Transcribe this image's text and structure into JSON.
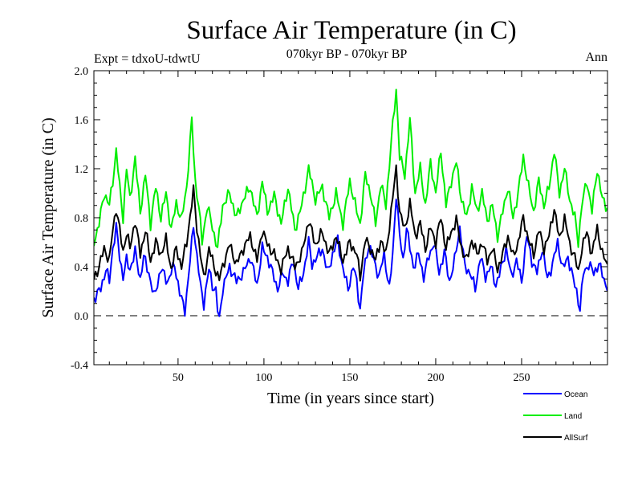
{
  "chart_data": {
    "type": "line",
    "title": "Surface Air Temperature (in C)",
    "subtitle": "070kyr BP - 070kyr BP",
    "expt_label": "Expt = tdxoU-tdwtU",
    "season_label": "Ann",
    "xlabel": "Time (in years since start)",
    "ylabel": "Surface Air Temperature (in C)",
    "xlim": [
      1,
      300
    ],
    "ylim": [
      -0.4,
      2.0
    ],
    "x_ticks": [
      50,
      100,
      150,
      200,
      250
    ],
    "y_ticks": [
      "-0.4",
      "0.0",
      "0.4",
      "0.8",
      "1.2",
      "1.6",
      "2.0"
    ],
    "zero_line": true,
    "legend_position": "bottom-right",
    "series": [
      {
        "name": "Ocean",
        "color": "#0000ff",
        "anchors": [
          [
            1,
            0.14
          ],
          [
            5,
            0.22
          ],
          [
            8,
            0.38
          ],
          [
            10,
            0.28
          ],
          [
            12,
            0.55
          ],
          [
            14,
            0.72
          ],
          [
            16,
            0.48
          ],
          [
            18,
            0.32
          ],
          [
            20,
            0.45
          ],
          [
            22,
            0.38
          ],
          [
            25,
            0.52
          ],
          [
            28,
            0.3
          ],
          [
            30,
            0.48
          ],
          [
            33,
            0.35
          ],
          [
            36,
            0.15
          ],
          [
            40,
            0.38
          ],
          [
            44,
            0.28
          ],
          [
            48,
            0.42
          ],
          [
            51,
            0.18
          ],
          [
            54,
            0.05
          ],
          [
            56,
            0.3
          ],
          [
            59,
            0.75
          ],
          [
            61,
            0.48
          ],
          [
            63,
            0.25
          ],
          [
            65,
            0.1
          ],
          [
            68,
            0.38
          ],
          [
            70,
            0.25
          ],
          [
            72,
            0.2
          ],
          [
            73,
            0.05
          ],
          [
            74,
            -0.03
          ],
          [
            76,
            0.22
          ],
          [
            80,
            0.4
          ],
          [
            84,
            0.28
          ],
          [
            88,
            0.35
          ],
          [
            92,
            0.48
          ],
          [
            96,
            0.25
          ],
          [
            99,
            0.55
          ],
          [
            102,
            0.48
          ],
          [
            105,
            0.35
          ],
          [
            108,
            0.22
          ],
          [
            111,
            0.35
          ],
          [
            114,
            0.28
          ],
          [
            117,
            0.45
          ],
          [
            120,
            0.22
          ],
          [
            123,
            0.35
          ],
          [
            126,
            0.6
          ],
          [
            128,
            0.42
          ],
          [
            131,
            0.48
          ],
          [
            134,
            0.55
          ],
          [
            137,
            0.35
          ],
          [
            140,
            0.5
          ],
          [
            143,
            0.62
          ],
          [
            146,
            0.38
          ],
          [
            149,
            0.22
          ],
          [
            152,
            0.4
          ],
          [
            154,
            0.28
          ],
          [
            156,
            0.05
          ],
          [
            158,
            0.35
          ],
          [
            161,
            0.58
          ],
          [
            164,
            0.45
          ],
          [
            167,
            0.32
          ],
          [
            170,
            0.5
          ],
          [
            173,
            0.22
          ],
          [
            175,
            0.5
          ],
          [
            177,
            1.0
          ],
          [
            179,
            0.65
          ],
          [
            181,
            0.45
          ],
          [
            183,
            0.72
          ],
          [
            185,
            0.55
          ],
          [
            187,
            0.4
          ],
          [
            190,
            0.5
          ],
          [
            193,
            0.32
          ],
          [
            196,
            0.48
          ],
          [
            199,
            0.6
          ],
          [
            202,
            0.35
          ],
          [
            205,
            0.52
          ],
          [
            208,
            0.28
          ],
          [
            211,
            0.45
          ],
          [
            214,
            0.72
          ],
          [
            217,
            0.4
          ],
          [
            220,
            0.35
          ],
          [
            223,
            0.22
          ],
          [
            226,
            0.48
          ],
          [
            229,
            0.32
          ],
          [
            232,
            0.4
          ],
          [
            235,
            0.25
          ],
          [
            238,
            0.38
          ],
          [
            241,
            0.55
          ],
          [
            244,
            0.32
          ],
          [
            247,
            0.45
          ],
          [
            250,
            0.28
          ],
          [
            253,
            0.65
          ],
          [
            256,
            0.45
          ],
          [
            259,
            0.35
          ],
          [
            262,
            0.55
          ],
          [
            265,
            0.3
          ],
          [
            268,
            0.42
          ],
          [
            271,
            0.6
          ],
          [
            274,
            0.38
          ],
          [
            277,
            0.48
          ],
          [
            280,
            0.3
          ],
          [
            282,
            0.2
          ],
          [
            284,
            0.05
          ],
          [
            286,
            0.35
          ],
          [
            289,
            0.42
          ],
          [
            292,
            0.35
          ],
          [
            295,
            0.42
          ],
          [
            298,
            0.3
          ],
          [
            300,
            0.2
          ]
        ]
      },
      {
        "name": "Land",
        "color": "#00ee00",
        "anchors": [
          [
            1,
            0.6
          ],
          [
            4,
            0.75
          ],
          [
            7,
            1.0
          ],
          [
            10,
            0.9
          ],
          [
            12,
            1.1
          ],
          [
            14,
            1.35
          ],
          [
            16,
            1.05
          ],
          [
            18,
            0.8
          ],
          [
            20,
            1.2
          ],
          [
            22,
            0.95
          ],
          [
            25,
            1.28
          ],
          [
            28,
            0.85
          ],
          [
            31,
            1.15
          ],
          [
            34,
            0.75
          ],
          [
            37,
            1.05
          ],
          [
            40,
            0.8
          ],
          [
            43,
            1.0
          ],
          [
            46,
            0.7
          ],
          [
            49,
            0.92
          ],
          [
            52,
            0.78
          ],
          [
            55,
            1.05
          ],
          [
            58,
            1.6
          ],
          [
            60,
            1.1
          ],
          [
            62,
            0.9
          ],
          [
            64,
            0.6
          ],
          [
            67,
            0.9
          ],
          [
            70,
            0.72
          ],
          [
            73,
            0.55
          ],
          [
            76,
            0.9
          ],
          [
            80,
            1.0
          ],
          [
            84,
            0.8
          ],
          [
            88,
            0.95
          ],
          [
            92,
            1.05
          ],
          [
            96,
            0.8
          ],
          [
            99,
            1.1
          ],
          [
            102,
            0.85
          ],
          [
            106,
            0.98
          ],
          [
            110,
            0.75
          ],
          [
            114,
            1.05
          ],
          [
            118,
            0.7
          ],
          [
            122,
            0.9
          ],
          [
            126,
            1.2
          ],
          [
            130,
            0.95
          ],
          [
            134,
            1.05
          ],
          [
            138,
            0.8
          ],
          [
            142,
            1.0
          ],
          [
            146,
            0.75
          ],
          [
            150,
            1.1
          ],
          [
            154,
            0.85
          ],
          [
            156,
            0.75
          ],
          [
            159,
            1.15
          ],
          [
            162,
            1.0
          ],
          [
            165,
            0.75
          ],
          [
            168,
            1.08
          ],
          [
            171,
            0.9
          ],
          [
            174,
            1.4
          ],
          [
            177,
            1.85
          ],
          [
            179,
            1.3
          ],
          [
            182,
            1.15
          ],
          [
            185,
            1.6
          ],
          [
            188,
            1.0
          ],
          [
            191,
            1.2
          ],
          [
            194,
            0.9
          ],
          [
            197,
            1.25
          ],
          [
            200,
            1.0
          ],
          [
            203,
            1.35
          ],
          [
            206,
            0.9
          ],
          [
            209,
            1.1
          ],
          [
            212,
            1.25
          ],
          [
            215,
            0.95
          ],
          [
            218,
            0.8
          ],
          [
            221,
            1.05
          ],
          [
            224,
            0.85
          ],
          [
            227,
            1.0
          ],
          [
            230,
            0.78
          ],
          [
            233,
            0.9
          ],
          [
            236,
            0.65
          ],
          [
            239,
            0.85
          ],
          [
            242,
            1.05
          ],
          [
            245,
            0.8
          ],
          [
            248,
            1.0
          ],
          [
            251,
            1.3
          ],
          [
            254,
            1.05
          ],
          [
            257,
            0.85
          ],
          [
            260,
            1.1
          ],
          [
            263,
            0.9
          ],
          [
            266,
            1.05
          ],
          [
            269,
            1.35
          ],
          [
            272,
            1.0
          ],
          [
            275,
            1.2
          ],
          [
            278,
            0.95
          ],
          [
            281,
            0.8
          ],
          [
            283,
            0.6
          ],
          [
            285,
            0.9
          ],
          [
            288,
            1.1
          ],
          [
            291,
            0.85
          ],
          [
            294,
            1.2
          ],
          [
            297,
            0.95
          ],
          [
            300,
            0.88
          ]
        ]
      },
      {
        "name": "AllSurf",
        "color": "#000000",
        "anchors": [
          [
            1,
            0.3
          ],
          [
            4,
            0.4
          ],
          [
            7,
            0.55
          ],
          [
            10,
            0.45
          ],
          [
            12,
            0.7
          ],
          [
            14,
            0.88
          ],
          [
            16,
            0.7
          ],
          [
            18,
            0.52
          ],
          [
            20,
            0.68
          ],
          [
            22,
            0.55
          ],
          [
            25,
            0.78
          ],
          [
            28,
            0.5
          ],
          [
            31,
            0.7
          ],
          [
            34,
            0.45
          ],
          [
            37,
            0.6
          ],
          [
            40,
            0.5
          ],
          [
            43,
            0.62
          ],
          [
            46,
            0.38
          ],
          [
            49,
            0.55
          ],
          [
            52,
            0.4
          ],
          [
            55,
            0.6
          ],
          [
            59,
            1.02
          ],
          [
            61,
            0.72
          ],
          [
            63,
            0.5
          ],
          [
            65,
            0.3
          ],
          [
            68,
            0.55
          ],
          [
            71,
            0.4
          ],
          [
            74,
            0.3
          ],
          [
            77,
            0.45
          ],
          [
            80,
            0.58
          ],
          [
            84,
            0.42
          ],
          [
            88,
            0.55
          ],
          [
            92,
            0.65
          ],
          [
            96,
            0.45
          ],
          [
            99,
            0.7
          ],
          [
            102,
            0.58
          ],
          [
            106,
            0.5
          ],
          [
            110,
            0.38
          ],
          [
            114,
            0.55
          ],
          [
            118,
            0.4
          ],
          [
            122,
            0.5
          ],
          [
            126,
            0.78
          ],
          [
            130,
            0.58
          ],
          [
            134,
            0.68
          ],
          [
            138,
            0.5
          ],
          [
            142,
            0.65
          ],
          [
            146,
            0.45
          ],
          [
            150,
            0.6
          ],
          [
            154,
            0.5
          ],
          [
            156,
            0.32
          ],
          [
            159,
            0.62
          ],
          [
            162,
            0.55
          ],
          [
            165,
            0.45
          ],
          [
            168,
            0.62
          ],
          [
            171,
            0.5
          ],
          [
            174,
            0.85
          ],
          [
            177,
            1.2
          ],
          [
            179,
            0.85
          ],
          [
            182,
            0.7
          ],
          [
            185,
            0.92
          ],
          [
            188,
            0.65
          ],
          [
            191,
            0.75
          ],
          [
            194,
            0.55
          ],
          [
            197,
            0.72
          ],
          [
            200,
            0.6
          ],
          [
            203,
            0.8
          ],
          [
            206,
            0.55
          ],
          [
            209,
            0.68
          ],
          [
            212,
            0.78
          ],
          [
            215,
            0.55
          ],
          [
            218,
            0.45
          ],
          [
            221,
            0.62
          ],
          [
            224,
            0.5
          ],
          [
            227,
            0.6
          ],
          [
            230,
            0.45
          ],
          [
            233,
            0.55
          ],
          [
            236,
            0.38
          ],
          [
            239,
            0.5
          ],
          [
            242,
            0.65
          ],
          [
            245,
            0.48
          ],
          [
            248,
            0.6
          ],
          [
            251,
            0.8
          ],
          [
            254,
            0.62
          ],
          [
            257,
            0.5
          ],
          [
            260,
            0.7
          ],
          [
            263,
            0.55
          ],
          [
            266,
            0.65
          ],
          [
            269,
            0.88
          ],
          [
            272,
            0.62
          ],
          [
            275,
            0.8
          ],
          [
            278,
            0.58
          ],
          [
            281,
            0.48
          ],
          [
            283,
            0.35
          ],
          [
            285,
            0.55
          ],
          [
            288,
            0.68
          ],
          [
            291,
            0.5
          ],
          [
            294,
            0.72
          ],
          [
            297,
            0.5
          ],
          [
            300,
            0.42
          ]
        ]
      }
    ]
  }
}
